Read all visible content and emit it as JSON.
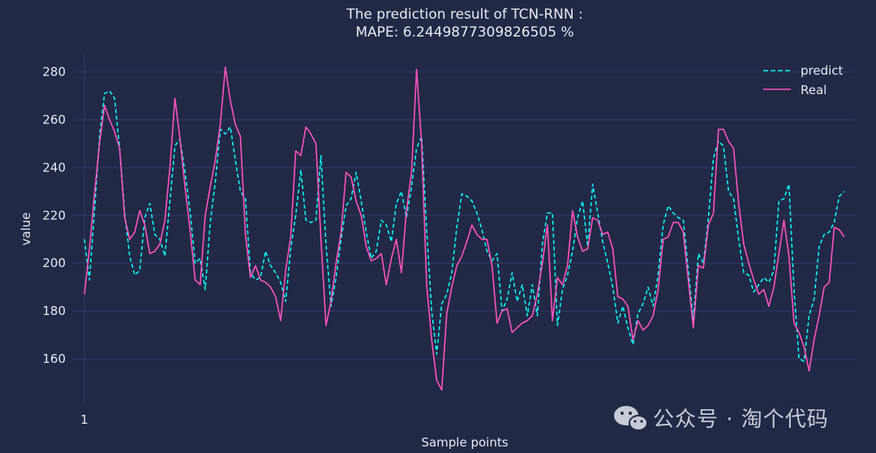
{
  "chart_data": {
    "type": "line",
    "title": "The prediction result of TCN-RNN :",
    "subtitle": "MAPE: 6.2449877309826505 %",
    "xlabel": "Sample points",
    "ylabel": "value",
    "xtick_labels": [
      {
        "value": 1,
        "label": "1"
      }
    ],
    "yticks": [
      160,
      180,
      200,
      220,
      240,
      260,
      280
    ],
    "xlim": [
      -1.5,
      101.5
    ],
    "ylim": [
      141,
      288
    ],
    "grid": "horizontal",
    "legend_position": "top-right",
    "series": [
      {
        "name": "predict",
        "style": "dashed",
        "color": "#08f7fe",
        "values": [
          210,
          193,
          222,
          253,
          271,
          272,
          269,
          248,
          221,
          203,
          195,
          197,
          219,
          225,
          212,
          210,
          203,
          226,
          249,
          252,
          238,
          222,
          200,
          202,
          189,
          217,
          234,
          256,
          254,
          257,
          243,
          230,
          227,
          196,
          193,
          194,
          205,
          199,
          196,
          192,
          184,
          206,
          220,
          239,
          218,
          217,
          218,
          245,
          208,
          182,
          194,
          210,
          224,
          227,
          238,
          226,
          213,
          202,
          205,
          218,
          216,
          209,
          225,
          230,
          219,
          232,
          248,
          253,
          214,
          180,
          162,
          183,
          187,
          196,
          215,
          229,
          228,
          226,
          221,
          214,
          205,
          201,
          204,
          180,
          185,
          196,
          184,
          191,
          178,
          191,
          178,
          208,
          221,
          221,
          174,
          189,
          195,
          205,
          219,
          226,
          207,
          233,
          221,
          209,
          200,
          190,
          175,
          182,
          173,
          166,
          179,
          183,
          190,
          182,
          195,
          216,
          224,
          221,
          219,
          218,
          197,
          176,
          204,
          200,
          219,
          244,
          251,
          249,
          230,
          227,
          210,
          196,
          195,
          188,
          191,
          194,
          192,
          197,
          226,
          227,
          233,
          189,
          160,
          159,
          178,
          185,
          207,
          212,
          213,
          217,
          228,
          230
        ]
      },
      {
        "name": "Real",
        "style": "solid",
        "color": "#fe53bb",
        "values": [
          187,
          206,
          229,
          250,
          266,
          260,
          255,
          248,
          219,
          210,
          213,
          222,
          216,
          204,
          205,
          208,
          218,
          240,
          269,
          252,
          232,
          214,
          193,
          191,
          220,
          232,
          243,
          258,
          282,
          268,
          258,
          253,
          212,
          194,
          199,
          193,
          192,
          190,
          186,
          176,
          197,
          211,
          247,
          245,
          257,
          254,
          250,
          210,
          174,
          184,
          200,
          213,
          238,
          236,
          226,
          220,
          207,
          201,
          202,
          204,
          191,
          202,
          210,
          196,
          222,
          238,
          281,
          250,
          191,
          168,
          151,
          147,
          179,
          190,
          199,
          203,
          209,
          216,
          212,
          210,
          210,
          199,
          175,
          180,
          181,
          171,
          173,
          175,
          176,
          178,
          187,
          200,
          216,
          176,
          194,
          191,
          199,
          222,
          211,
          205,
          206,
          219,
          218,
          212,
          213,
          206,
          186,
          185,
          182,
          168,
          176,
          172,
          174,
          178,
          189,
          210,
          211,
          217,
          217,
          213,
          193,
          173,
          199,
          198,
          216,
          221,
          256,
          256,
          251,
          248,
          225,
          208,
          200,
          193,
          187,
          189,
          182,
          190,
          204,
          218,
          203,
          175,
          171,
          165,
          155,
          168,
          178,
          190,
          192,
          215,
          214,
          211
        ]
      }
    ]
  },
  "watermark": {
    "text": "公众号 · 淘个代码",
    "icon": "wechat-icon"
  },
  "colors": {
    "background": "#212946",
    "grid": "#2a3459",
    "predict": "#08f7fe",
    "real": "#fe53bb",
    "text": "#e9ebf2"
  }
}
